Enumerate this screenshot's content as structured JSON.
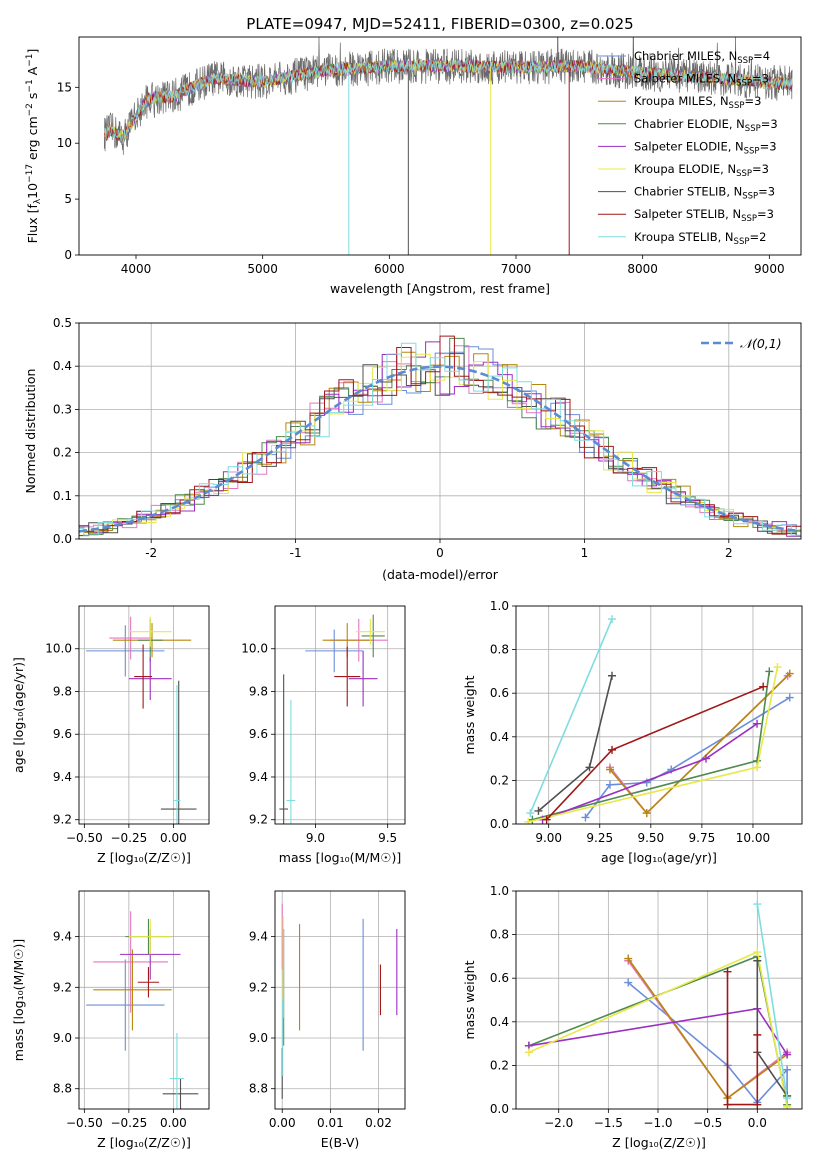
{
  "figure_title": "PLATE=0947, MJD=52411, FIBERID=0300, z=0.025",
  "series_colors": [
    "#6a8ed9",
    "#e377c2",
    "#b8860b",
    "#4f8a4f",
    "#9b30c0",
    "#e8e84a",
    "#505050",
    "#a01818",
    "#7fdde0"
  ],
  "legend_entries": [
    {
      "name": "Chabrier MILES, N",
      "sub": "SSP",
      "suffix": "=4"
    },
    {
      "name": "Salpeter MILES, N",
      "sub": "SSP",
      "suffix": "=3"
    },
    {
      "name": "Kroupa MILES, N",
      "sub": "SSP",
      "suffix": "=3"
    },
    {
      "name": "Chabrier ELODIE, N",
      "sub": "SSP",
      "suffix": "=3"
    },
    {
      "name": "Salpeter ELODIE, N",
      "sub": "SSP",
      "suffix": "=3"
    },
    {
      "name": "Kroupa ELODIE, N",
      "sub": "SSP",
      "suffix": "=3"
    },
    {
      "name": "Chabrier STELIB, N",
      "sub": "SSP",
      "suffix": "=3"
    },
    {
      "name": "Salpeter STELIB, N",
      "sub": "SSP",
      "suffix": "=3"
    },
    {
      "name": "Kroupa STELIB, N",
      "sub": "SSP",
      "suffix": "=2"
    }
  ],
  "chart_data": [
    {
      "id": "spectrum",
      "type": "line",
      "title": "PLATE=0947, MJD=52411, FIBERID=0300, z=0.025",
      "xlabel": "wavelength [Angstrom, rest frame]",
      "ylabel_parts": [
        "Flux [f",
        "λ",
        "10",
        "−17",
        " erg cm",
        "−2",
        " s",
        "−1",
        " A",
        "−1",
        "]"
      ],
      "xlim": [
        3550,
        9250
      ],
      "ylim": [
        0,
        19.5
      ],
      "xticks": [
        4000,
        5000,
        6000,
        7000,
        8000,
        9000
      ],
      "yticks": [
        0,
        5,
        10,
        15
      ],
      "x_range_data": [
        3750,
        9180
      ],
      "continuum_knots": [
        [
          3750,
          10.8
        ],
        [
          3800,
          11.2
        ],
        [
          3900,
          10.5
        ],
        [
          4000,
          12.5
        ],
        [
          4100,
          14.0
        ],
        [
          4300,
          14.2
        ],
        [
          4600,
          15.8
        ],
        [
          5000,
          15.5
        ],
        [
          5500,
          16.5
        ],
        [
          6000,
          16.9
        ],
        [
          6500,
          16.9
        ],
        [
          7000,
          16.8
        ],
        [
          7500,
          16.9
        ],
        [
          7800,
          16.5
        ],
        [
          8200,
          16.1
        ],
        [
          8600,
          15.8
        ],
        [
          9180,
          15.3
        ]
      ],
      "absorption_spikes": [
        5680,
        6150,
        6800,
        7420
      ]
    },
    {
      "id": "residuals",
      "type": "step-histogram",
      "xlabel": "(data-model)/error",
      "ylabel": "Normed distribution",
      "xlim": [
        -2.5,
        2.5
      ],
      "ylim": [
        0,
        0.5
      ],
      "xticks": [
        -2,
        -1,
        0,
        1,
        2
      ],
      "yticks": [
        0.0,
        0.1,
        0.2,
        0.3,
        0.4,
        0.5
      ],
      "bin_width": 0.1,
      "reference": {
        "label": "𝒩(0,1)",
        "mu": 0,
        "sigma": 1,
        "color": "#5b8bd4"
      }
    },
    {
      "id": "age_vs_Z",
      "type": "errorbar",
      "xlabel": "Z [log₁₀(Z/Z☉)]",
      "ylabel": "age  [log₁₀(age/yr)]",
      "xlim": [
        -0.53,
        0.2
      ],
      "ylim": [
        9.18,
        10.2
      ],
      "xticks": [
        -0.5,
        -0.25,
        0.0
      ],
      "xticklabels": [
        "−0.50",
        "−0.25",
        "0.00"
      ],
      "yticks": [
        9.2,
        9.4,
        9.6,
        9.8,
        10.0
      ],
      "points": [
        {
          "s": 0,
          "x": -0.27,
          "y": 9.99,
          "xerr": 0.22,
          "yerr": 0.12
        },
        {
          "s": 1,
          "x": -0.24,
          "y": 10.05,
          "xerr": 0.12,
          "yerr": 0.1
        },
        {
          "s": 2,
          "x": -0.12,
          "y": 10.04,
          "xerr": 0.22,
          "yerr": 0.08
        },
        {
          "s": 3,
          "x": -0.13,
          "y": 10.04,
          "xerr": 0.07,
          "yerr": 0.1
        },
        {
          "s": 4,
          "x": -0.13,
          "y": 9.86,
          "xerr": 0.12,
          "yerr": 0.1
        },
        {
          "s": 5,
          "x": -0.13,
          "y": 10.08,
          "xerr": 0.12,
          "yerr": 0.07
        },
        {
          "s": 6,
          "x": 0.03,
          "y": 9.25,
          "xerr": 0.1,
          "yerr": 0.6
        },
        {
          "s": 7,
          "x": -0.17,
          "y": 9.87,
          "xerr": 0.05,
          "yerr": 0.15
        },
        {
          "s": 8,
          "x": 0.02,
          "y": 9.29,
          "xerr": 0.02,
          "yerr": 0.54
        }
      ]
    },
    {
      "id": "age_vs_mass",
      "type": "errorbar",
      "xlabel": "mass [log₁₀(M/M☉)]",
      "ylabel": "",
      "xlim": [
        8.72,
        9.62
      ],
      "ylim": [
        9.18,
        10.2
      ],
      "xticks": [
        9.0,
        9.5
      ],
      "xticklabels": [
        "9.0",
        "9.5"
      ],
      "yticks": [
        9.2,
        9.4,
        9.6,
        9.8,
        10.0
      ],
      "points": [
        {
          "s": 0,
          "x": 9.13,
          "y": 9.99,
          "xerr": 0.2,
          "yerr": 0.1
        },
        {
          "s": 1,
          "x": 9.3,
          "y": 10.04,
          "xerr": 0.2,
          "yerr": 0.1
        },
        {
          "s": 2,
          "x": 9.22,
          "y": 10.04,
          "xerr": 0.17,
          "yerr": 0.08
        },
        {
          "s": 3,
          "x": 9.4,
          "y": 10.06,
          "xerr": 0.08,
          "yerr": 0.1
        },
        {
          "s": 4,
          "x": 9.33,
          "y": 9.86,
          "xerr": 0.1,
          "yerr": 0.13
        },
        {
          "s": 5,
          "x": 9.38,
          "y": 10.08,
          "xerr": 0.1,
          "yerr": 0.06
        },
        {
          "s": 6,
          "x": 8.78,
          "y": 9.25,
          "xerr": 0.03,
          "yerr": 0.63
        },
        {
          "s": 7,
          "x": 9.22,
          "y": 9.87,
          "xerr": 0.09,
          "yerr": 0.14
        },
        {
          "s": 8,
          "x": 8.83,
          "y": 9.29,
          "xerr": 0.03,
          "yerr": 0.47
        }
      ]
    },
    {
      "id": "weight_vs_age",
      "type": "line",
      "xlabel": "age  [log₁₀(age/yr)]",
      "ylabel": "mass weight",
      "xlim": [
        8.84,
        10.24
      ],
      "ylim": [
        0,
        1.0
      ],
      "xticks": [
        9.0,
        9.25,
        9.5,
        9.75,
        10.0
      ],
      "xticklabels": [
        "9.00",
        "9.25",
        "9.50",
        "9.75",
        "10.00"
      ],
      "yticks": [
        0.0,
        0.2,
        0.4,
        0.6,
        0.8,
        1.0
      ],
      "series": [
        {
          "s": 0,
          "x": [
            9.18,
            9.3,
            9.48,
            9.6,
            10.18
          ],
          "y": [
            0.03,
            0.18,
            0.19,
            0.25,
            0.58
          ]
        },
        {
          "s": 1,
          "x": [
            9.3,
            9.48,
            10.17
          ],
          "y": [
            0.26,
            0.05,
            0.68
          ]
        },
        {
          "s": 2,
          "x": [
            9.3,
            9.48,
            10.18
          ],
          "y": [
            0.25,
            0.05,
            0.69
          ]
        },
        {
          "s": 3,
          "x": [
            8.92,
            10.02,
            10.08
          ],
          "y": [
            0.02,
            0.29,
            0.7
          ]
        },
        {
          "s": 4,
          "x": [
            8.97,
            9.77,
            10.02
          ],
          "y": [
            0.02,
            0.3,
            0.46
          ]
        },
        {
          "s": 5,
          "x": [
            8.9,
            10.02,
            10.12
          ],
          "y": [
            0.01,
            0.26,
            0.72
          ]
        },
        {
          "s": 6,
          "x": [
            8.95,
            9.2,
            9.31
          ],
          "y": [
            0.06,
            0.26,
            0.68
          ]
        },
        {
          "s": 7,
          "x": [
            8.99,
            9.31,
            10.05
          ],
          "y": [
            0.02,
            0.34,
            0.63
          ]
        },
        {
          "s": 8,
          "x": [
            8.91,
            9.31
          ],
          "y": [
            0.05,
            0.94
          ]
        }
      ]
    },
    {
      "id": "mass_vs_Z",
      "type": "errorbar",
      "xlabel": "Z [log₁₀(Z/Z☉)]",
      "ylabel": "mass [log₁₀(M/M☉)]",
      "xlim": [
        -0.53,
        0.2
      ],
      "ylim": [
        8.72,
        9.58
      ],
      "xticks": [
        -0.5,
        -0.25,
        0.0
      ],
      "xticklabels": [
        "−0.50",
        "−0.25",
        "0.00"
      ],
      "yticks": [
        8.8,
        9.0,
        9.2,
        9.4
      ],
      "points": [
        {
          "s": 0,
          "x": -0.27,
          "y": 9.13,
          "xerr": 0.22,
          "yerr": 0.18
        },
        {
          "s": 1,
          "x": -0.24,
          "y": 9.3,
          "xerr": 0.21,
          "yerr": 0.2
        },
        {
          "s": 2,
          "x": -0.23,
          "y": 9.19,
          "xerr": 0.22,
          "yerr": 0.16
        },
        {
          "s": 3,
          "x": -0.14,
          "y": 9.4,
          "xerr": 0.13,
          "yerr": 0.07
        },
        {
          "s": 4,
          "x": -0.13,
          "y": 9.33,
          "xerr": 0.17,
          "yerr": 0.1
        },
        {
          "s": 5,
          "x": -0.13,
          "y": 9.4,
          "xerr": 0.12,
          "yerr": 0.07
        },
        {
          "s": 6,
          "x": 0.04,
          "y": 8.78,
          "xerr": 0.1,
          "yerr": 0.06
        },
        {
          "s": 7,
          "x": -0.14,
          "y": 9.22,
          "xerr": 0.06,
          "yerr": 0.06
        },
        {
          "s": 8,
          "x": 0.02,
          "y": 8.84,
          "xerr": 0.04,
          "yerr": 0.18
        }
      ]
    },
    {
      "id": "mass_vs_ebv",
      "type": "errorbar",
      "xlabel": "E(B-V)",
      "ylabel": "",
      "xlim": [
        -0.0015,
        0.0255
      ],
      "ylim": [
        8.72,
        9.58
      ],
      "xticks": [
        0.0,
        0.01,
        0.02
      ],
      "xticklabels": [
        "0.00",
        "0.01",
        "0.02"
      ],
      "yticks": [
        8.8,
        9.0,
        9.2,
        9.4
      ],
      "points": [
        {
          "s": 0,
          "x": 0.0168,
          "y": 9.21,
          "xerr": 0,
          "yerr": 0.26
        },
        {
          "s": 1,
          "x": 0.0,
          "y": 9.4,
          "xerr": 0,
          "yerr": 0.13
        },
        {
          "s": 2,
          "x": 0.0036,
          "y": 9.24,
          "xerr": 0,
          "yerr": 0.21
        },
        {
          "s": 3,
          "x": 0.0003,
          "y": 9.2,
          "xerr": 0,
          "yerr": 0.23
        },
        {
          "s": 4,
          "x": 0.0238,
          "y": 9.26,
          "xerr": 0,
          "yerr": 0.17
        },
        {
          "s": 5,
          "x": 0.0002,
          "y": 9.28,
          "xerr": 0,
          "yerr": 0.2
        },
        {
          "s": 6,
          "x": 0.0,
          "y": 8.86,
          "xerr": 0,
          "yerr": 0.1
        },
        {
          "s": 7,
          "x": 0.0204,
          "y": 9.19,
          "xerr": 0,
          "yerr": 0.1
        },
        {
          "s": 8,
          "x": 0.0001,
          "y": 9.0,
          "xerr": 0,
          "yerr": 0.15
        }
      ]
    },
    {
      "id": "weight_vs_Z",
      "type": "line",
      "xlabel": "Z [log₁₀(Z/Z☉)]",
      "ylabel": "mass weight",
      "xlim": [
        -2.43,
        0.45
      ],
      "ylim": [
        0,
        1.0
      ],
      "xticks": [
        -2.0,
        -1.5,
        -1.0,
        -0.5,
        0.0
      ],
      "xticklabels": [
        "−2.0",
        "−1.5",
        "−1.0",
        "−0.5",
        "0.0"
      ],
      "yticks": [
        0.0,
        0.2,
        0.4,
        0.6,
        0.8,
        1.0
      ],
      "series": [
        {
          "s": 0,
          "x": [
            -1.3,
            -0.3,
            0.0,
            0.3,
            0.3
          ],
          "y": [
            0.58,
            0.2,
            0.03,
            0.18,
            0.06
          ]
        },
        {
          "s": 1,
          "x": [
            -1.3,
            -0.3,
            0.3
          ],
          "y": [
            0.68,
            0.05,
            0.26
          ]
        },
        {
          "s": 2,
          "x": [
            -1.3,
            -0.3,
            0.3
          ],
          "y": [
            0.69,
            0.05,
            0.25
          ]
        },
        {
          "s": 3,
          "x": [
            -2.3,
            0.0,
            0.3
          ],
          "y": [
            0.29,
            0.7,
            0.02
          ]
        },
        {
          "s": 4,
          "x": [
            -2.3,
            0.0,
            0.3
          ],
          "y": [
            0.29,
            0.46,
            0.25
          ]
        },
        {
          "s": 5,
          "x": [
            -2.3,
            0.0,
            0.3
          ],
          "y": [
            0.26,
            0.72,
            0.01
          ]
        },
        {
          "s": 6,
          "x": [
            0.0,
            0.0,
            0.3
          ],
          "y": [
            0.68,
            0.26,
            0.06
          ]
        },
        {
          "s": 7,
          "x": [
            -0.3,
            -0.3,
            0.0,
            0.0
          ],
          "y": [
            0.63,
            0.02,
            0.02,
            0.34
          ]
        },
        {
          "s": 8,
          "x": [
            0.0,
            0.3
          ],
          "y": [
            0.94,
            0.05
          ]
        }
      ]
    }
  ]
}
